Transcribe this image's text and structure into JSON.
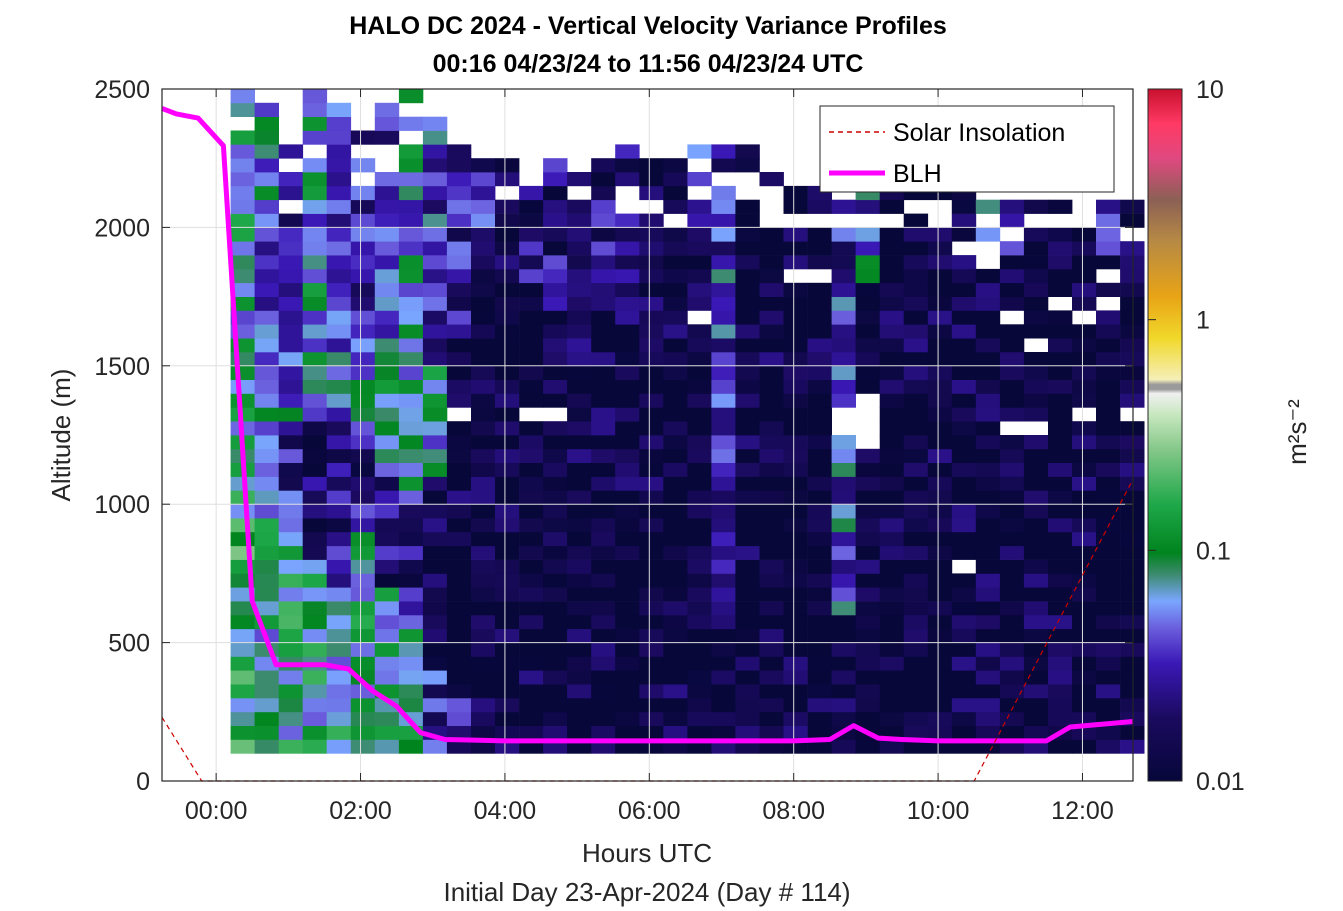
{
  "chart_data": {
    "type": "heatmap",
    "title": "HALO DC 2024 - Vertical Velocity Variance Profiles",
    "subtitle": "00:16 04/23/24 to 11:56 04/23/24  UTC",
    "xlabel": "Hours UTC",
    "xlabel2": "Initial Day 23-Apr-2024 (Day # 114)",
    "ylabel": "Altitude (m)",
    "x_ticks": [
      "00:00",
      "02:00",
      "04:00",
      "06:00",
      "08:00",
      "10:00",
      "12:00"
    ],
    "x_tick_values": [
      0,
      2,
      4,
      6,
      8,
      10,
      12
    ],
    "y_ticks": [
      "0",
      "500",
      "1000",
      "1500",
      "2000",
      "2500"
    ],
    "y_tick_values": [
      0,
      500,
      1000,
      1500,
      2000,
      2500
    ],
    "xlim_hours": [
      -0.75,
      12.7
    ],
    "ylim": [
      0,
      2500
    ],
    "grid": true,
    "colorbar": {
      "label": "m²s⁻²",
      "scale": "log",
      "range": [
        0.01,
        10
      ],
      "ticks": [
        "0.01",
        "0.1",
        "1",
        "10"
      ],
      "tick_values": [
        0.01,
        0.1,
        1,
        10
      ]
    },
    "legend": {
      "placement": "top-right",
      "entries": [
        {
          "name": "Solar Insolation",
          "color": "#cc0000",
          "style": "dashed"
        },
        {
          "name": "BLH",
          "color": "#ff00ff",
          "style": "solid"
        }
      ]
    },
    "series": [
      {
        "name": "BLH",
        "x": [
          -0.75,
          -0.55,
          -0.25,
          0.1,
          0.5,
          0.83,
          1.17,
          1.5,
          1.83,
          2.17,
          2.5,
          2.83,
          3.17,
          3.5,
          4.0,
          6.0,
          8.0,
          8.5,
          8.83,
          9.17,
          9.5,
          10.0,
          11.5,
          11.83,
          12.7
        ],
        "y": [
          2430,
          2410,
          2395,
          2295,
          650,
          420,
          420,
          420,
          405,
          325,
          270,
          175,
          150,
          148,
          145,
          145,
          145,
          150,
          200,
          155,
          150,
          145,
          145,
          195,
          215
        ]
      },
      {
        "name": "Solar Insolation",
        "x": [
          -0.75,
          -0.2,
          10.5,
          12.7
        ],
        "y": [
          230,
          0,
          0,
          1090
        ]
      }
    ],
    "heatmap": {
      "x_start_hours": 0.2,
      "x_step_hours": 0.333,
      "y_start_m": 100,
      "y_step_m": 50,
      "columns": [
        {
          "top": 2500,
          "band": [
            [
              2000,
              0.1
            ],
            [
              1450,
              0.07
            ],
            [
              1000,
              0.09
            ],
            [
              100,
              0.12
            ]
          ]
        },
        {
          "top": 2450,
          "band": [
            [
              1800,
              0.05
            ],
            [
              1400,
              0.04
            ],
            [
              1000,
              0.06
            ],
            [
              100,
              0.08
            ]
          ]
        },
        {
          "top": 2300,
          "band": [
            [
              1700,
              0.03
            ],
            [
              1300,
              0.05
            ],
            [
              900,
              0.025
            ],
            [
              100,
              0.1
            ]
          ]
        },
        {
          "top": 2500,
          "band": [
            [
              1800,
              0.06
            ],
            [
              1400,
              0.07
            ],
            [
              800,
              0.02
            ],
            [
              100,
              0.1
            ]
          ]
        },
        {
          "top": 2450,
          "band": [
            [
              1800,
              0.04
            ],
            [
              1300,
              0.05
            ],
            [
              700,
              0.02
            ],
            [
              100,
              0.08
            ]
          ]
        },
        {
          "top": 2400,
          "band": [
            [
              1700,
              0.03
            ],
            [
              1200,
              0.06
            ],
            [
              900,
              0.02
            ],
            [
              100,
              0.1
            ]
          ]
        },
        {
          "top": 2450,
          "band": [
            [
              1600,
              0.03
            ],
            [
              1100,
              0.08
            ],
            [
              700,
              0.02
            ],
            [
              100,
              0.09
            ]
          ]
        },
        {
          "top": 2500,
          "band": [
            [
              1800,
              0.06
            ],
            [
              1000,
              0.09
            ],
            [
              600,
              0.02
            ],
            [
              100,
              0.08
            ]
          ]
        },
        {
          "top": 2400,
          "band": [
            [
              1500,
              0.04
            ],
            [
              1100,
              0.08
            ],
            [
              400,
              0.012
            ],
            [
              100,
              0.03
            ]
          ]
        },
        {
          "top": 2350,
          "band": [
            [
              1600,
              0.025
            ],
            [
              300,
              0.011
            ],
            [
              100,
              0.02
            ]
          ]
        },
        {
          "top": 2250,
          "band": [
            [
              2000,
              0.03
            ],
            [
              100,
              0.011
            ]
          ]
        },
        {
          "top": 2250,
          "band": [
            [
              100,
              0.011
            ]
          ]
        },
        {
          "top": 2250,
          "band": [
            [
              1800,
              0.02
            ],
            [
              100,
              0.011
            ]
          ]
        },
        {
          "top": 2300,
          "band": [
            [
              1700,
              0.02
            ],
            [
              100,
              0.011
            ]
          ]
        },
        {
          "top": 2200,
          "band": [
            [
              1500,
              0.025
            ],
            [
              100,
              0.011
            ]
          ]
        },
        {
          "top": 2250,
          "band": [
            [
              1800,
              0.02
            ],
            [
              100,
              0.011
            ]
          ]
        },
        {
          "top": 2300,
          "band": [
            [
              1500,
              0.02
            ],
            [
              100,
              0.011
            ]
          ]
        },
        {
          "top": 2300,
          "band": [
            [
              100,
              0.011
            ]
          ]
        },
        {
          "top": 2250,
          "band": [
            [
              100,
              0.011
            ]
          ]
        },
        {
          "top": 2300,
          "band": [
            [
              2000,
              0.04
            ],
            [
              100,
              0.011
            ]
          ]
        },
        {
          "top": 2300,
          "band": [
            [
              1900,
              0.03
            ],
            [
              600,
              0.04
            ],
            [
              100,
              0.011
            ]
          ]
        },
        {
          "top": 2300,
          "band": [
            [
              100,
              0.011
            ]
          ]
        },
        {
          "top": 2200,
          "band": [
            [
              100,
              0.011
            ]
          ]
        },
        {
          "top": 2150,
          "band": [
            [
              100,
              0.011
            ]
          ]
        },
        {
          "top": 2150,
          "band": [
            [
              100,
              0.011
            ]
          ]
        },
        {
          "top": 2200,
          "band": [
            [
              1800,
              0.03
            ],
            [
              600,
              0.04
            ],
            [
              100,
              0.011
            ]
          ]
        },
        {
          "top": 2150,
          "band": [
            [
              1800,
              0.05
            ],
            [
              100,
              0.011
            ]
          ]
        },
        {
          "top": 2150,
          "band": [
            [
              100,
              0.011
            ]
          ]
        },
        {
          "top": 2150,
          "band": [
            [
              100,
              0.011
            ]
          ]
        },
        {
          "top": 2150,
          "band": [
            [
              100,
              0.011
            ]
          ]
        },
        {
          "top": 2150,
          "band": [
            [
              100,
              0.011
            ]
          ]
        },
        {
          "top": 2100,
          "band": [
            [
              1850,
              0.04
            ],
            [
              100,
              0.011
            ]
          ]
        },
        {
          "top": 2100,
          "band": [
            [
              1900,
              0.05
            ],
            [
              100,
              0.011
            ]
          ]
        },
        {
          "top": 2100,
          "band": [
            [
              100,
              0.011
            ]
          ]
        },
        {
          "top": 2150,
          "band": [
            [
              100,
              0.011
            ]
          ]
        },
        {
          "top": 2150,
          "band": [
            [
              100,
              0.011
            ]
          ]
        },
        {
          "top": 2100,
          "band": [
            [
              1900,
              0.03
            ],
            [
              100,
              0.011
            ]
          ]
        },
        {
          "top": 2100,
          "band": [
            [
              100,
              0.011
            ]
          ]
        }
      ],
      "gaps": [
        [
          9,
          1300
        ],
        [
          12,
          1300
        ],
        [
          13,
          1300
        ],
        [
          19,
          1650
        ],
        [
          23,
          1800
        ],
        [
          24,
          1800
        ],
        [
          25,
          1300
        ],
        [
          25,
          1250
        ],
        [
          26,
          1350
        ],
        [
          26,
          1300
        ],
        [
          26,
          1250
        ],
        [
          26,
          1200
        ],
        [
          30,
          750
        ],
        [
          32,
          1250
        ],
        [
          33,
          1250
        ],
        [
          34,
          1700
        ],
        [
          35,
          1650
        ],
        [
          35,
          1300
        ],
        [
          36,
          1800
        ],
        [
          36,
          1700
        ],
        [
          37,
          1300
        ],
        [
          34,
          2000
        ],
        [
          35,
          2000
        ],
        [
          28,
          2050
        ],
        [
          31,
          1850
        ],
        [
          32,
          1650
        ],
        [
          33,
          1550
        ]
      ]
    }
  }
}
